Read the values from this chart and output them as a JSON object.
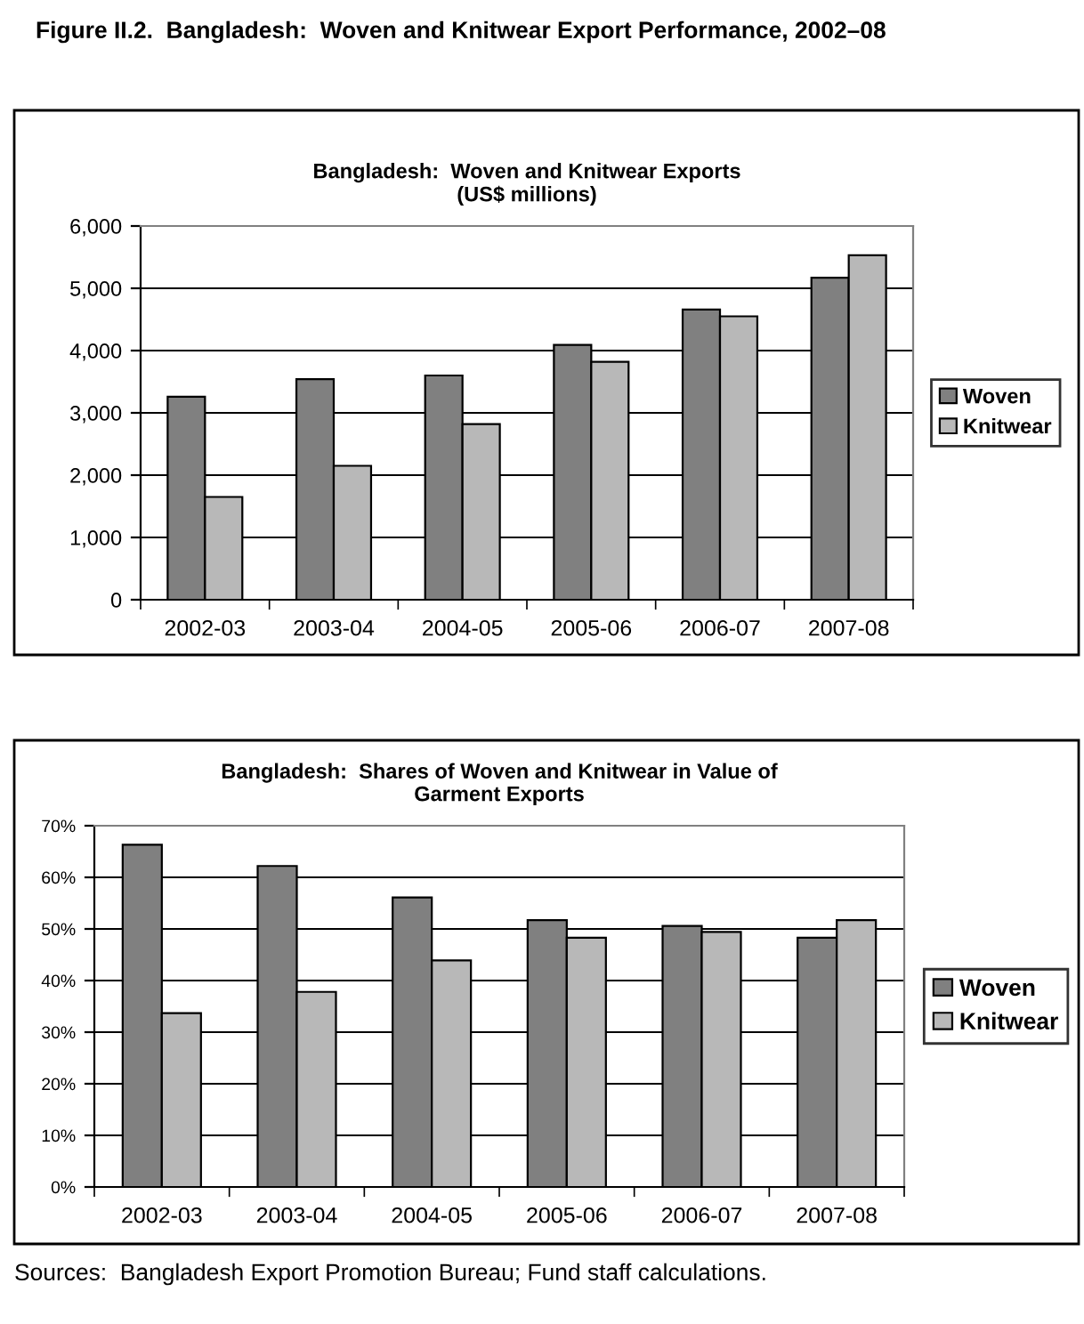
{
  "chart_data": [
    {
      "type": "bar",
      "title": "Bangladesh:  Woven and Knitwear Exports\n(US$ millions)",
      "categories": [
        "2002-03",
        "2003-04",
        "2004-05",
        "2005-06",
        "2006-07",
        "2007-08"
      ],
      "series": [
        {
          "name": "Woven",
          "color": "#808080",
          "values": [
            3260,
            3540,
            3600,
            4090,
            4660,
            5170
          ]
        },
        {
          "name": "Knitwear",
          "color": "#b8b8b8",
          "values": [
            1650,
            2150,
            2820,
            3820,
            4550,
            5530
          ]
        }
      ],
      "ylim": [
        0,
        6000
      ],
      "yticks": [
        {
          "value": 0,
          "label": "0"
        },
        {
          "value": 1000,
          "label": "1,000"
        },
        {
          "value": 2000,
          "label": "2,000"
        },
        {
          "value": 3000,
          "label": "3,000"
        },
        {
          "value": 4000,
          "label": "4,000"
        },
        {
          "value": 5000,
          "label": "5,000"
        },
        {
          "value": 6000,
          "label": "6,000"
        }
      ],
      "grid": "y",
      "legend": "right",
      "annotations": [
        "Figure II.2.  Bangladesh:  Woven and Knitwear Export Performance, 2002–08"
      ]
    },
    {
      "type": "bar",
      "title": "Bangladesh:  Shares of Woven and Knitwear in Value of\nGarment Exports",
      "categories": [
        "2002-03",
        "2003-04",
        "2004-05",
        "2005-06",
        "2006-07",
        "2007-08"
      ],
      "series": [
        {
          "name": "Woven",
          "color": "#808080",
          "values": [
            66.3,
            62.2,
            56.1,
            51.7,
            50.6,
            48.3
          ]
        },
        {
          "name": "Knitwear",
          "color": "#b8b8b8",
          "values": [
            33.7,
            37.8,
            43.9,
            48.3,
            49.4,
            51.7
          ]
        }
      ],
      "ylim": [
        0,
        70
      ],
      "yticks": [
        {
          "value": 0,
          "label": "0%"
        },
        {
          "value": 10,
          "label": "10%"
        },
        {
          "value": 20,
          "label": "20%"
        },
        {
          "value": 30,
          "label": "30%"
        },
        {
          "value": 40,
          "label": "40%"
        },
        {
          "value": 50,
          "label": "50%"
        },
        {
          "value": 60,
          "label": "60%"
        },
        {
          "value": 70,
          "label": "70%"
        }
      ],
      "grid": "y",
      "legend": "right",
      "annotations": [
        "Sources:  Bangladesh Export Promotion Bureau; Fund staff calculations."
      ]
    }
  ]
}
